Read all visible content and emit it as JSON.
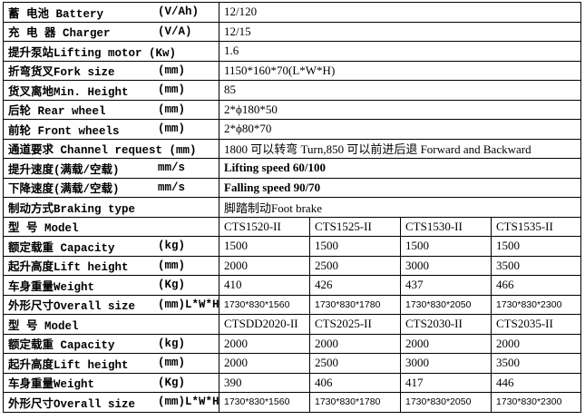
{
  "spec_rows": [
    {
      "name": "蓄 电池 Battery",
      "unit": "(V/Ah)",
      "value": "12/120"
    },
    {
      "name": "充 电 器 Charger",
      "unit": "(V/A)",
      "value": "12/15"
    },
    {
      "name": "提升泵站Lifting motor (Kw)",
      "value": "1.6"
    },
    {
      "name": "折弯货叉Fork size",
      "unit": "(mm)",
      "value": "1150*160*70(L*W*H)"
    },
    {
      "name": "货叉离地Min. Height",
      "unit": "(mm)",
      "value": "85"
    },
    {
      "name": "后轮 Rear wheel",
      "unit": "(mm)",
      "value": "2*ϕ180*50"
    },
    {
      "name": "前轮 Front wheels",
      "unit": "(mm)",
      "value": "2*ϕ80*70"
    },
    {
      "name": "通道要求 Channel request (mm)",
      "value": "1800 可以转弯 Turn,850 可以前进后退  Forward and Backward"
    },
    {
      "name": "提升速度(满载/空载)",
      "unit": "mm/s",
      "value": "Lifting speed  60/100"
    },
    {
      "name": "下降速度(满载/空载)",
      "unit": "mm/s",
      "value": "Falling speed  90/70"
    },
    {
      "name": "制动方式Braking type",
      "value": "脚踏制动Foot brake"
    }
  ],
  "model_groups": [
    {
      "rows": [
        {
          "name": "型  号 Model",
          "values": [
            "CTS1520-II",
            "CTS1525-II",
            "CTS1530-II",
            "CTS1535-II"
          ]
        },
        {
          "name": "额定载重 Capacity",
          "unit": "(kg)",
          "values": [
            "1500",
            "1500",
            "1500",
            "1500"
          ]
        },
        {
          "name": "起升高度Lift height",
          "unit": "(mm)",
          "values": [
            "2000",
            "2500",
            "3000",
            "3500"
          ]
        },
        {
          "name": "车身重量Weight",
          "unit": "(Kg)",
          "values": [
            "410",
            "426",
            "437",
            "466"
          ]
        },
        {
          "name": "外形尺寸Overall size",
          "unit": "(mm)L*W*H",
          "values": [
            "1730*830*1560",
            "1730*830*1780",
            "1730*830*2050",
            "1730*830*2300"
          ]
        }
      ]
    },
    {
      "rows": [
        {
          "name": "型  号 Model",
          "values": [
            "CTSDD2020-II",
            "CTS2025-II",
            "CTS2030-II",
            "CTS2035-II"
          ]
        },
        {
          "name": "额定载重 Capacity",
          "unit": "(kg)",
          "values": [
            "2000",
            "2000",
            "2000",
            "2000"
          ]
        },
        {
          "name": "起升高度Lift height",
          "unit": "(mm)",
          "values": [
            "2000",
            "2500",
            "3000",
            "3500"
          ]
        },
        {
          "name": "车身重量Weight",
          "unit": "(Kg)",
          "values": [
            "390",
            "406",
            "417",
            "446"
          ]
        },
        {
          "name": "外形尺寸Overall size",
          "unit": "(mm)L*W*H",
          "values": [
            "1730*830*1560",
            "1730*830*1780",
            "1730*830*2050",
            "1730*830*2300"
          ]
        }
      ]
    }
  ]
}
